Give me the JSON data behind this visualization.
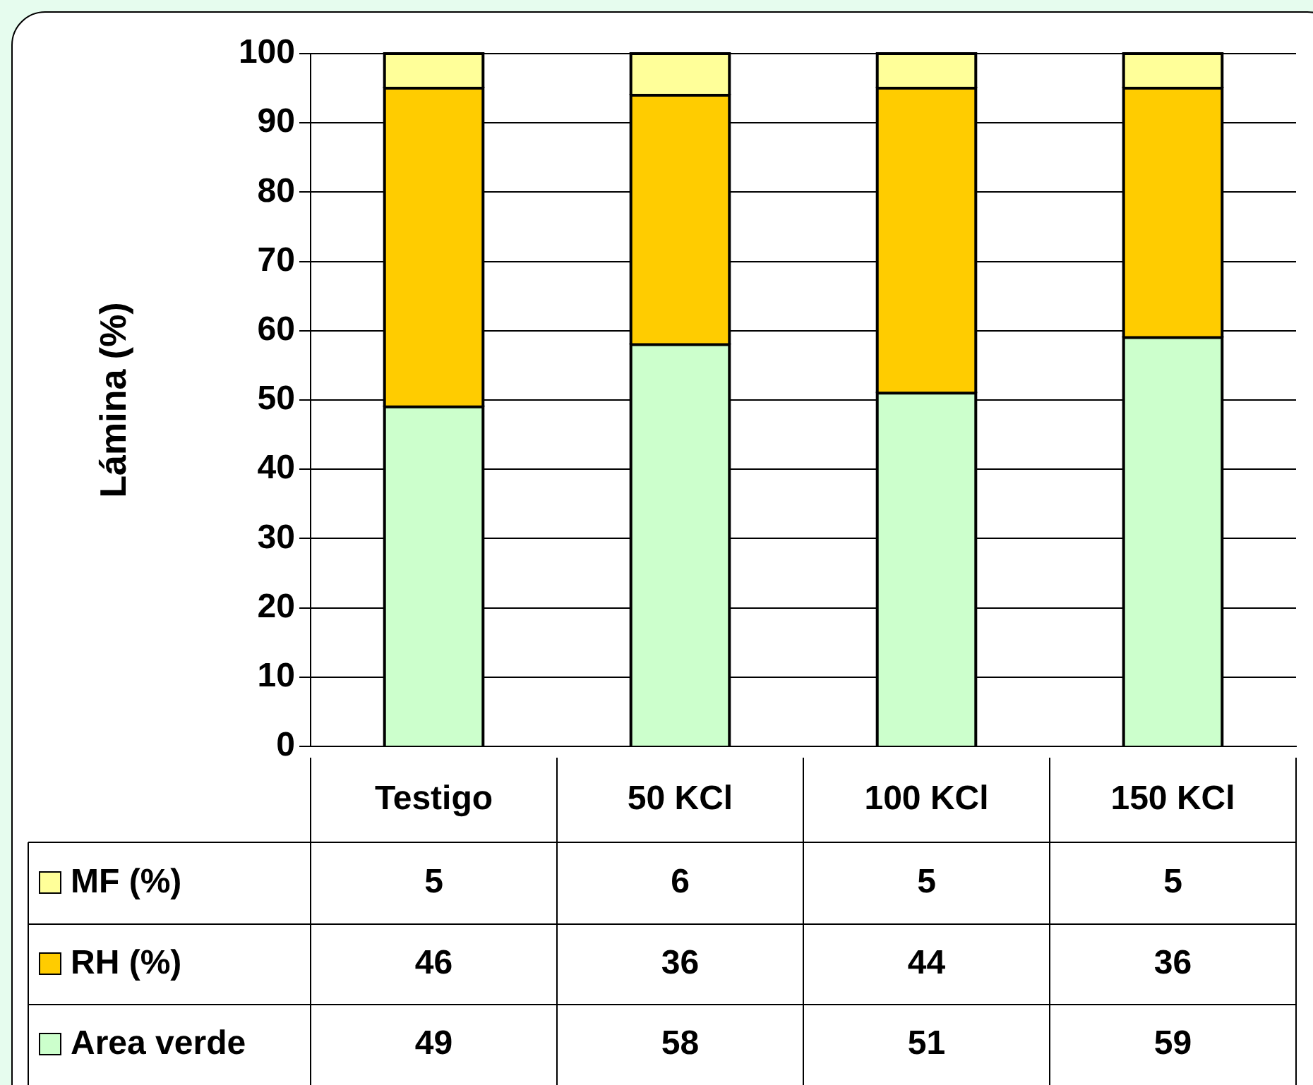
{
  "chart_data": {
    "type": "bar",
    "ylabel": "Lámina (%)",
    "categories": [
      "Testigo",
      "50 KCl",
      "100 KCl",
      "150 KCl"
    ],
    "stacked": true,
    "series": [
      {
        "name": "Area verde",
        "color": "#ccffcc",
        "values": [
          49,
          58,
          51,
          59
        ]
      },
      {
        "name": "RH (%)",
        "color": "#ffcc00",
        "values": [
          46,
          36,
          44,
          36
        ]
      },
      {
        "name": "MF (%)",
        "color": "#ffff99",
        "values": [
          5,
          6,
          5,
          5
        ]
      }
    ],
    "ylim": [
      0,
      100
    ],
    "yticks": [
      0,
      10,
      20,
      30,
      40,
      50,
      60,
      70,
      80,
      90,
      100
    ],
    "grid": "y",
    "legend": "bottom",
    "data_labels": true
  }
}
